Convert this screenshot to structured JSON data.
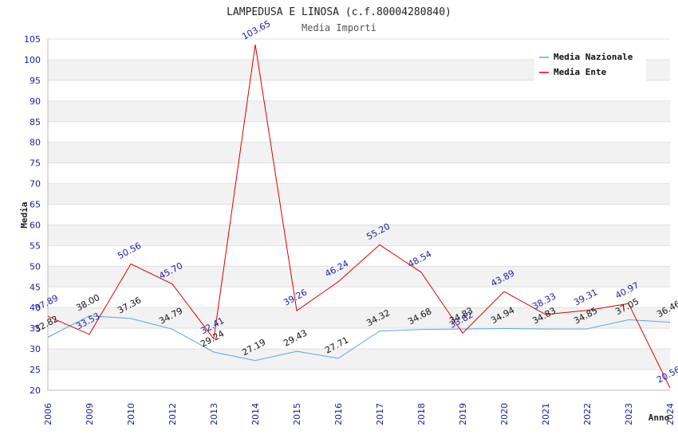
{
  "chart_data": {
    "type": "line",
    "title": "LAMPEDUSA E LINOSA (c.f.80004280840)",
    "subtitle": "Media Importi",
    "xlabel": "Anno",
    "ylabel": "Media",
    "ylim": [
      20,
      105
    ],
    "ystep": 5,
    "categories": [
      "2006",
      "2009",
      "2010",
      "2012",
      "2013",
      "2014",
      "2015",
      "2016",
      "2017",
      "2018",
      "2019",
      "2020",
      "2021",
      "2022",
      "2023",
      "2024"
    ],
    "series": [
      {
        "name": "Media Nazionale",
        "color": "#5aa5e6",
        "values": [
          32.82,
          38.0,
          37.36,
          34.79,
          29.24,
          27.19,
          29.43,
          27.71,
          34.32,
          34.68,
          34.83,
          34.94,
          34.83,
          34.85,
          37.05,
          36.46
        ],
        "labels": [
          "32.82",
          "38.00",
          "37.36",
          "34.79",
          "29.24",
          "27.19",
          "29.43",
          "27.71",
          "34.32",
          "34.68",
          "34.83",
          "34.94",
          "34.83",
          "34.85",
          "37.05",
          "36.46"
        ]
      },
      {
        "name": "Media Ente",
        "color": "#dd0000",
        "values": [
          37.89,
          33.53,
          50.56,
          45.7,
          32.41,
          103.65,
          39.26,
          46.24,
          55.2,
          48.54,
          33.82,
          43.89,
          38.33,
          39.31,
          40.97,
          20.56
        ],
        "labels": [
          "37.89",
          "33.53",
          "50.56",
          "45.70",
          "32.41",
          "103.65",
          "39.26",
          "46.24",
          "55.20",
          "48.54",
          "33.82",
          "43.89",
          "38.33",
          "39.31",
          "40.97",
          "20.56"
        ]
      }
    ],
    "legend_position": "top-right",
    "grid": true
  }
}
